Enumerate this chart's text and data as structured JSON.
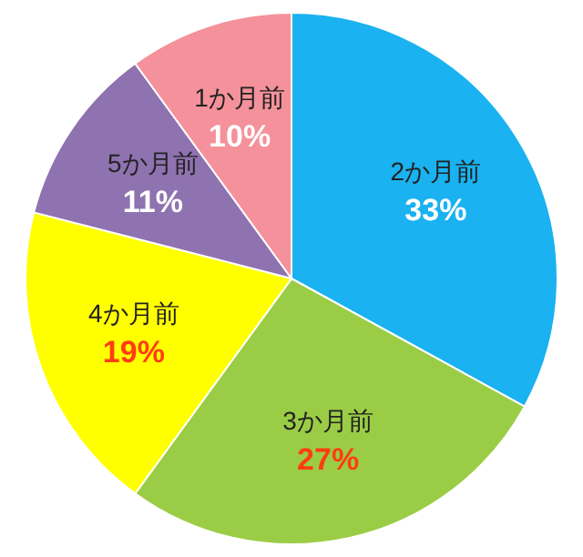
{
  "chart_data": {
    "type": "pie",
    "categories": [
      "2か月前",
      "3か月前",
      "4か月前",
      "5か月前",
      "1か月前"
    ],
    "values": [
      33,
      27,
      19,
      11,
      10
    ],
    "colors": [
      "#1ab2f0",
      "#9acd45",
      "#ffff00",
      "#8f72b0",
      "#f4919a"
    ],
    "value_labels": [
      "33%",
      "27%",
      "19%",
      "11%",
      "10%"
    ]
  }
}
